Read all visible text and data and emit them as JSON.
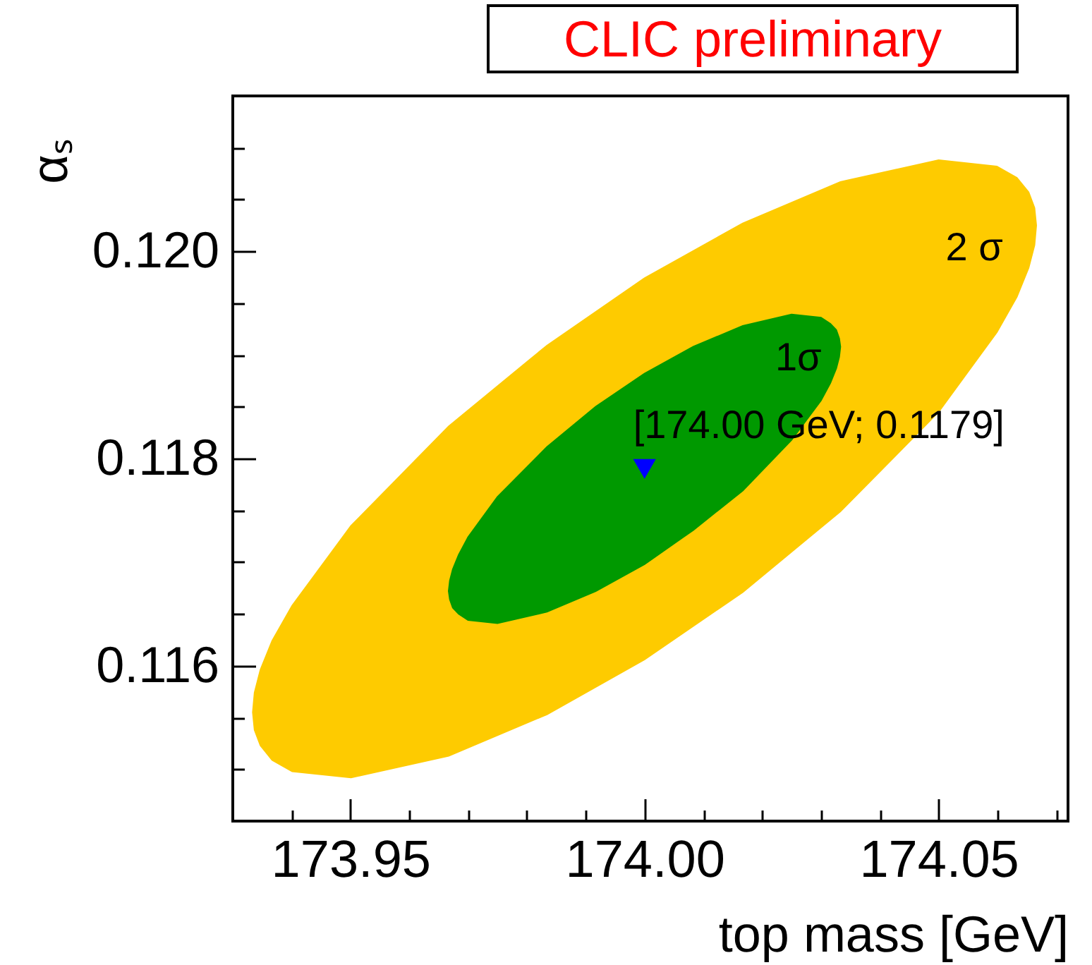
{
  "chart_data": {
    "type": "area",
    "title": "CLIC preliminary",
    "xlabel": "top mass [GeV]",
    "ylabel": "αₛ",
    "xlim": [
      173.93,
      174.072
    ],
    "ylim": [
      0.1145,
      0.1215
    ],
    "xticks": [
      {
        "value": 173.94,
        "label": null
      },
      {
        "value": 173.95,
        "label": "173.95"
      },
      {
        "value": 173.96,
        "label": null
      },
      {
        "value": 173.97,
        "label": null
      },
      {
        "value": 173.98,
        "label": null
      },
      {
        "value": 173.99,
        "label": null
      },
      {
        "value": 174,
        "label": "174.00"
      },
      {
        "value": 174.01,
        "label": null
      },
      {
        "value": 174.02,
        "label": null
      },
      {
        "value": 174.03,
        "label": null
      },
      {
        "value": 174.04,
        "label": null
      },
      {
        "value": 174.05,
        "label": "174.05"
      },
      {
        "value": 174.06,
        "label": null
      },
      {
        "value": 174.07,
        "label": null
      }
    ],
    "yticks": [
      {
        "value": 0.115,
        "label": null
      },
      {
        "value": 0.1155,
        "label": null
      },
      {
        "value": 0.116,
        "label": "0.116"
      },
      {
        "value": 0.1165,
        "label": null
      },
      {
        "value": 0.117,
        "label": null
      },
      {
        "value": 0.1175,
        "label": null
      },
      {
        "value": 0.118,
        "label": "0.118"
      },
      {
        "value": 0.1185,
        "label": null
      },
      {
        "value": 0.119,
        "label": null
      },
      {
        "value": 0.1195,
        "label": null
      },
      {
        "value": 0.12,
        "label": "0.120"
      },
      {
        "value": 0.1205,
        "label": null
      },
      {
        "value": 0.121,
        "label": null
      }
    ],
    "series": [
      {
        "name": "2 σ",
        "color": "#fecb00",
        "x": [
          173.9334,
          173.9337,
          173.9347,
          173.9367,
          173.9401,
          173.9501,
          173.9667,
          173.9834,
          174.0,
          174.0167,
          174.0333,
          174.05,
          174.0599,
          174.0633,
          174.0653,
          174.0663,
          174.0666,
          174.0663,
          174.0653,
          174.0633,
          174.0599,
          174.05,
          174.0333,
          174.0167,
          174.0,
          173.9834,
          173.9667,
          173.9501,
          173.9401,
          173.9367,
          173.9347,
          173.9337,
          173.9334
        ],
        "values": [
          0.11555,
          0.11574,
          0.11596,
          0.11624,
          0.11658,
          0.11735,
          0.11831,
          0.11909,
          0.11974,
          0.12027,
          0.12067,
          0.12088,
          0.12082,
          0.12071,
          0.12057,
          0.12042,
          0.12025,
          0.12006,
          0.11984,
          0.11956,
          0.11922,
          0.11845,
          0.11749,
          0.11671,
          0.11606,
          0.11553,
          0.11513,
          0.11492,
          0.11498,
          0.11509,
          0.11523,
          0.11538,
          0.11555
        ]
      },
      {
        "name": "1σ",
        "color": "#009900",
        "x": [
          173.9667,
          173.9669,
          173.9674,
          173.9684,
          173.97,
          173.975,
          173.9834,
          173.9917,
          174.0,
          174.0083,
          174.0167,
          174.025,
          174.03,
          174.0316,
          174.0326,
          174.0331,
          174.0333,
          174.0331,
          174.0326,
          174.0316,
          174.03,
          174.025,
          174.0167,
          174.0083,
          174.0,
          173.9917,
          173.9834,
          173.975,
          173.97,
          173.9684,
          173.9674,
          173.9669,
          173.9667
        ],
        "values": [
          0.11672,
          0.11682,
          0.11693,
          0.11707,
          0.11724,
          0.11763,
          0.11811,
          0.1185,
          0.11882,
          0.11908,
          0.11928,
          0.11939,
          0.11936,
          0.1193,
          0.11924,
          0.11916,
          0.11908,
          0.11898,
          0.11887,
          0.11873,
          0.11856,
          0.11818,
          0.11769,
          0.11731,
          0.11698,
          0.11672,
          0.11652,
          0.11641,
          0.11644,
          0.1165,
          0.11656,
          0.11664,
          0.11672
        ]
      },
      {
        "type": "scatter",
        "marker": "triangle",
        "color": "#0000ff",
        "x": [
          174.0
        ],
        "values": [
          0.1179
        ]
      }
    ],
    "annotations": [
      {
        "text": "[174.00 GeV; 0.1179]",
        "x": 174.0,
        "y": 0.1179
      }
    ]
  }
}
